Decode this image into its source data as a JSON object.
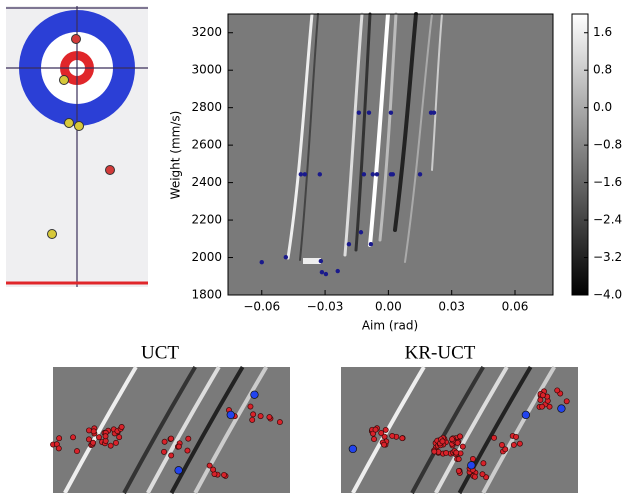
{
  "chart_data": [
    {
      "type": "scatter",
      "xlabel": "Aim (rad)",
      "ylabel": "Weight (mm/s)",
      "color": "#1a1a8c",
      "xlim": [
        -0.076,
        0.078
      ],
      "ylim": [
        1800,
        3300
      ],
      "xticks": [
        {
          "value": -0.06,
          "label": "−0.06"
        },
        {
          "value": -0.03,
          "label": "−0.03"
        },
        {
          "value": 0,
          "label": "0.00"
        },
        0.03,
        0.06
      ],
      "yticks": [
        1800,
        2000,
        2200,
        2400,
        2600,
        2800,
        3000,
        3200
      ],
      "colorbar_lim": [
        -4.0,
        2.0
      ],
      "colorbar_ticks": [
        1.6,
        0.8,
        {
          "value": 0,
          "label": "0.0"
        },
        {
          "value": -0.8,
          "label": "−0.8"
        },
        {
          "value": -1.6,
          "label": "−1.6"
        },
        {
          "value": -2.4,
          "label": "−2.4"
        },
        {
          "value": -3.2,
          "label": "−3.2"
        },
        {
          "value": -4.0,
          "label": "−4.0"
        }
      ],
      "x": [
        -0.06,
        -0.0486,
        -0.032,
        -0.0315,
        -0.0296,
        -0.024,
        -0.0187,
        -0.013,
        -0.0083,
        -0.0415,
        -0.0396,
        -0.0325,
        -0.0116,
        -0.0074,
        -0.0054,
        0.0012,
        0.0021,
        0.015,
        -0.014,
        -0.0092,
        0.0012,
        0.0202,
        0.0216
      ],
      "y": [
        1975,
        2002,
        1981,
        1922,
        1912,
        1928,
        2071,
        2135,
        2071,
        2444,
        2444,
        2444,
        2444,
        2444,
        2444,
        2444,
        2444,
        2444,
        2773,
        2773,
        2773,
        2773,
        2773
      ]
    },
    {
      "type": "samples",
      "title": "UCT"
    },
    {
      "type": "samples",
      "title": "KR-UCT"
    }
  ]
}
